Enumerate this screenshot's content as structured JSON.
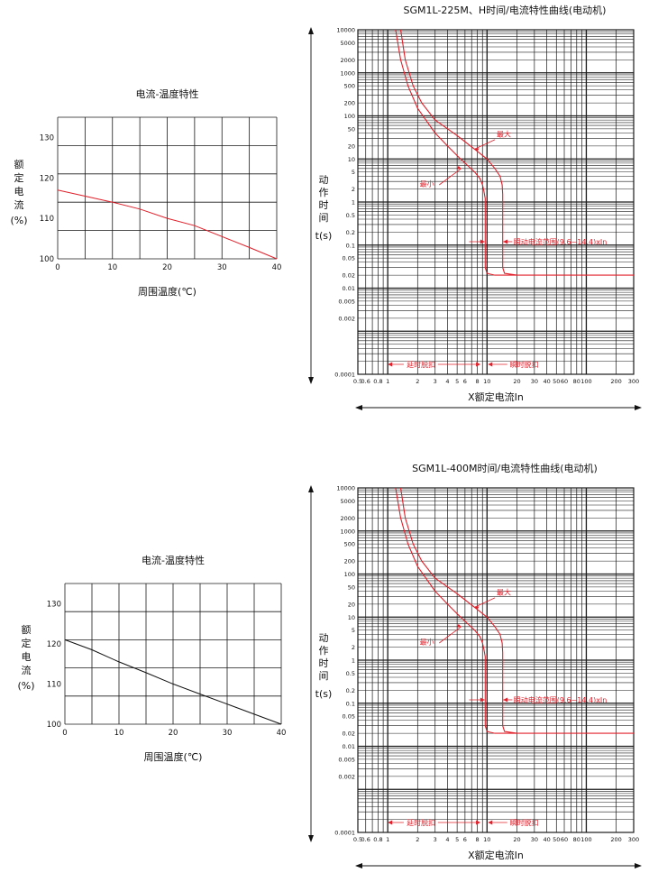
{
  "colors": {
    "grid": "#1a1a1a",
    "curve_red": "#e0202a",
    "curve_black": "#111111",
    "annotation": "#e0202a",
    "text": "#111111"
  },
  "chart_data": [
    {
      "type": "line",
      "title": "电流-温度特性",
      "xlabel": "周围温度(℃)",
      "ylabel_chars": [
        "额",
        "定",
        "电",
        "流"
      ],
      "ylabel_unit": "(%)",
      "xlim": [
        0,
        40
      ],
      "ylim": [
        100,
        135
      ],
      "xticks": [
        0,
        10,
        20,
        30,
        40
      ],
      "yticks": [
        100,
        110,
        120,
        130
      ],
      "grid": true,
      "series": [
        {
          "color": "#e0202a",
          "x": [
            0,
            5,
            10,
            15,
            20,
            25,
            30,
            35,
            40
          ],
          "y": [
            117,
            115.5,
            114,
            112.3,
            110,
            108.2,
            105.5,
            102.8,
            100
          ]
        }
      ]
    },
    {
      "type": "line",
      "title": "SGM1L-225M、H时间/电流特性曲线(电动机)",
      "xlabel": "X额定电流In",
      "ylabel_chars": [
        "动",
        "作",
        "时",
        "间"
      ],
      "ylabel_unit": "t(s)",
      "xscale": "log",
      "yscale": "log",
      "xlim": [
        0.5,
        300
      ],
      "ylim": [
        0.0001,
        10000
      ],
      "xtick_labels": [
        "0.5",
        "0.6",
        "0.8",
        "1",
        "2",
        "3",
        "4",
        "5",
        "6",
        "8",
        "10",
        "20",
        "30",
        "40",
        "50",
        "60",
        "80",
        "100",
        "200",
        "300"
      ],
      "ytick_labels": [
        "0.0001",
        "0.002",
        "0.005",
        "0.01",
        "0.02",
        "0.05",
        "0.1",
        "0.2",
        "0.5",
        "1",
        "2",
        "5",
        "10",
        "20",
        "50",
        "100",
        "200",
        "500",
        "1000",
        "2000",
        "5000",
        "10000"
      ],
      "grid": true,
      "series": [
        {
          "color": "#e0202a",
          "x": [
            1.2,
            1.35,
            1.6,
            2,
            3,
            4,
            5,
            6,
            7.5,
            8.5,
            9,
            9.3,
            9.6,
            9.6,
            9.6,
            10,
            12,
            20
          ],
          "y": [
            10000,
            2000,
            500,
            150,
            40,
            20,
            12,
            8,
            5,
            3.5,
            2.5,
            1.8,
            1.2,
            0.1,
            0.03,
            0.022,
            0.02,
            0.02
          ]
        },
        {
          "color": "#e0202a",
          "x": [
            1.35,
            1.5,
            1.8,
            2.2,
            3,
            5,
            8,
            10,
            12,
            13.5,
            14.2,
            14.4,
            14.4,
            14.4,
            15,
            20,
            300
          ],
          "y": [
            10000,
            2000,
            500,
            200,
            80,
            35,
            15,
            10,
            6,
            4,
            2.5,
            1.5,
            0.1,
            0.03,
            0.022,
            0.02,
            0.02
          ]
        }
      ],
      "annotations": {
        "max": "最大",
        "min": "最小",
        "range": "瞬动电流范围(9.6~14.4)xIn",
        "delay": "延时脱扣",
        "instant": "瞬时脱扣"
      }
    },
    {
      "type": "line",
      "title": "电流-温度特性",
      "xlabel": "周围温度(℃)",
      "ylabel_chars": [
        "额",
        "定",
        "电",
        "流"
      ],
      "ylabel_unit": "(%)",
      "xlim": [
        0,
        40
      ],
      "ylim": [
        100,
        135
      ],
      "xticks": [
        0,
        10,
        20,
        30,
        40
      ],
      "yticks": [
        100,
        110,
        120,
        130
      ],
      "grid": true,
      "series": [
        {
          "color": "#111111",
          "x": [
            0,
            5,
            10,
            15,
            20,
            25,
            30,
            35,
            40
          ],
          "y": [
            121,
            118.5,
            115.5,
            112.8,
            110,
            107.5,
            105,
            102.5,
            100
          ]
        }
      ]
    },
    {
      "type": "line",
      "title": "SGM1L-400M时间/电流特性曲线(电动机)",
      "xlabel": "X额定电流In",
      "ylabel_chars": [
        "动",
        "作",
        "时",
        "间"
      ],
      "ylabel_unit": "t(s)",
      "xscale": "log",
      "yscale": "log",
      "xlim": [
        0.5,
        300
      ],
      "ylim": [
        0.0001,
        10000
      ],
      "xtick_labels": [
        "0.5",
        "0.6",
        "0.8",
        "1",
        "2",
        "3",
        "4",
        "5",
        "6",
        "8",
        "10",
        "20",
        "30",
        "40",
        "50",
        "60",
        "80",
        "100",
        "200",
        "300"
      ],
      "ytick_labels": [
        "0.0001",
        "0.002",
        "0.005",
        "0.01",
        "0.02",
        "0.05",
        "0.1",
        "0.2",
        "0.5",
        "1",
        "2",
        "5",
        "10",
        "20",
        "50",
        "100",
        "200",
        "500",
        "1000",
        "2000",
        "5000",
        "10000"
      ],
      "grid": true,
      "series": [
        {
          "color": "#e0202a",
          "x": [
            1.2,
            1.35,
            1.6,
            2,
            3,
            4,
            5,
            6,
            7.5,
            8.5,
            9,
            9.3,
            9.6,
            9.6,
            9.6,
            10,
            12,
            20
          ],
          "y": [
            10000,
            2000,
            500,
            150,
            40,
            20,
            12,
            8,
            5,
            3.5,
            2.5,
            1.8,
            1.2,
            0.1,
            0.03,
            0.022,
            0.02,
            0.02
          ]
        },
        {
          "color": "#e0202a",
          "x": [
            1.35,
            1.5,
            1.8,
            2.2,
            3,
            5,
            8,
            10,
            12,
            13.5,
            14.2,
            14.4,
            14.4,
            14.4,
            15,
            20,
            300
          ],
          "y": [
            10000,
            2000,
            500,
            200,
            80,
            35,
            15,
            10,
            6,
            4,
            2.5,
            1.5,
            0.1,
            0.03,
            0.022,
            0.02,
            0.02
          ]
        }
      ],
      "annotations": {
        "max": "最大",
        "min": "最小",
        "range": "瞬动电流范围(9.6~14.4)xIn",
        "delay": "延时脱扣",
        "instant": "瞬时脱扣"
      }
    }
  ]
}
